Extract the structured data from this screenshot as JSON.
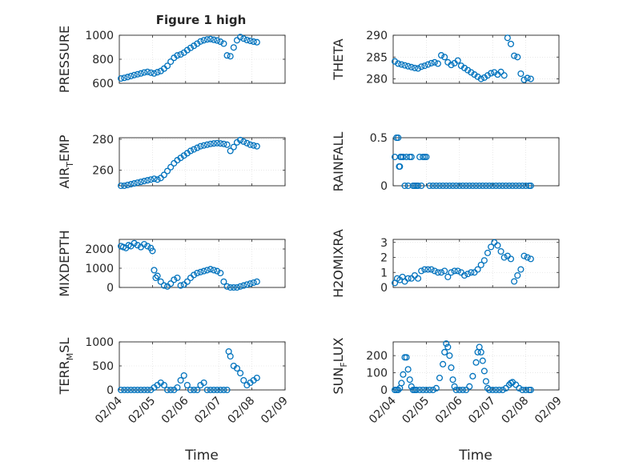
{
  "colors": {
    "marker": "#0072BD",
    "axis": "#262626",
    "grid": "#d9d9d9"
  },
  "figure_title": "Figure 1 high",
  "xlabel": "Time",
  "x_ticks": [
    "02/04",
    "02/05",
    "02/06",
    "02/07",
    "02/08",
    "02/09"
  ],
  "chart_data": [
    {
      "type": "scatter",
      "ylabel": "PRESSURE",
      "ylim": [
        600,
        1000
      ],
      "yticks": [
        600,
        800,
        1000
      ],
      "grid": true,
      "x": [
        0.05,
        0.15,
        0.25,
        0.35,
        0.45,
        0.55,
        0.65,
        0.75,
        0.85,
        0.95,
        1.05,
        1.15,
        1.25,
        1.35,
        1.45,
        1.55,
        1.65,
        1.75,
        1.85,
        1.95,
        2.05,
        2.15,
        2.25,
        2.35,
        2.45,
        2.55,
        2.65,
        2.75,
        2.85,
        2.95,
        3.05,
        3.15,
        3.25,
        3.35,
        3.45,
        3.55,
        3.65,
        3.75,
        3.85,
        3.95,
        4.05,
        4.15
      ],
      "y": [
        640,
        645,
        652,
        660,
        668,
        675,
        682,
        690,
        695,
        688,
        682,
        692,
        702,
        722,
        745,
        780,
        812,
        832,
        840,
        855,
        876,
        895,
        912,
        930,
        948,
        958,
        965,
        968,
        962,
        956,
        946,
        930,
        832,
        825,
        898,
        958,
        985,
        972,
        960,
        953,
        947,
        942
      ]
    },
    {
      "type": "scatter",
      "ylabel": "THETA",
      "ylim": [
        279,
        290
      ],
      "yticks": [
        280,
        285,
        290
      ],
      "grid": true,
      "x": [
        0.05,
        0.15,
        0.25,
        0.35,
        0.45,
        0.55,
        0.65,
        0.75,
        0.85,
        0.95,
        1.05,
        1.15,
        1.25,
        1.35,
        1.45,
        1.55,
        1.65,
        1.75,
        1.85,
        1.95,
        2.05,
        2.15,
        2.25,
        2.35,
        2.45,
        2.55,
        2.65,
        2.75,
        2.85,
        2.95,
        3.05,
        3.15,
        3.25,
        3.35,
        3.45,
        3.55,
        3.65,
        3.75,
        3.85,
        3.95,
        4.05,
        4.15
      ],
      "y": [
        284.0,
        283.5,
        283.3,
        283.1,
        282.9,
        282.7,
        282.5,
        282.4,
        282.8,
        283.0,
        283.3,
        283.6,
        283.8,
        283.5,
        285.4,
        285.0,
        283.8,
        283.2,
        283.6,
        284.2,
        283.0,
        282.5,
        282.0,
        281.5,
        281.0,
        280.5,
        280.0,
        280.3,
        280.8,
        281.3,
        281.5,
        281.0,
        281.6,
        280.8,
        289.4,
        288.0,
        285.3,
        285.0,
        281.2,
        279.8,
        280.2,
        280.0
      ]
    },
    {
      "type": "scatter",
      "ylabel": "AIR_TEMP",
      "ylim": [
        250,
        281
      ],
      "yticks": [
        260,
        280
      ],
      "grid": true,
      "x": [
        0.05,
        0.15,
        0.25,
        0.35,
        0.45,
        0.55,
        0.65,
        0.75,
        0.85,
        0.95,
        1.05,
        1.15,
        1.25,
        1.35,
        1.45,
        1.55,
        1.65,
        1.75,
        1.85,
        1.95,
        2.05,
        2.15,
        2.25,
        2.35,
        2.45,
        2.55,
        2.65,
        2.75,
        2.85,
        2.95,
        3.05,
        3.15,
        3.25,
        3.35,
        3.45,
        3.55,
        3.65,
        3.75,
        3.85,
        3.95,
        4.05,
        4.15
      ],
      "y": [
        250,
        250,
        250.5,
        251,
        251.5,
        252,
        252.5,
        253,
        253.5,
        254,
        254.5,
        254,
        255,
        257,
        259.5,
        262,
        264.5,
        266.5,
        268,
        269.5,
        271,
        272.5,
        273.5,
        274.5,
        275.5,
        276,
        276.5,
        277,
        277.3,
        277.5,
        277.3,
        277,
        276.5,
        272.5,
        275,
        278,
        279.5,
        278.5,
        277.5,
        276.5,
        276,
        275.5
      ]
    },
    {
      "type": "scatter",
      "ylabel": "RAINFALL",
      "ylim": [
        0,
        0.5
      ],
      "yticks": [
        0,
        0.5
      ],
      "grid": true,
      "x": [
        0.05,
        0.1,
        0.15,
        0.18,
        0.2,
        0.22,
        0.25,
        0.3,
        0.35,
        0.4,
        0.45,
        0.5,
        0.55,
        0.6,
        0.65,
        0.7,
        0.75,
        0.8,
        0.85,
        0.9,
        0.95,
        1.0,
        1.1,
        1.2,
        1.3,
        1.4,
        1.5,
        1.6,
        1.7,
        1.8,
        1.9,
        2.0,
        2.1,
        2.2,
        2.3,
        2.4,
        2.5,
        2.6,
        2.7,
        2.8,
        2.9,
        3.0,
        3.1,
        3.2,
        3.3,
        3.4,
        3.5,
        3.6,
        3.7,
        3.8,
        3.9,
        4.0,
        4.1,
        4.15
      ],
      "y": [
        0.3,
        0.5,
        0.5,
        0.2,
        0.2,
        0.3,
        0.3,
        0.3,
        0,
        0.3,
        0,
        0.3,
        0.3,
        0,
        0,
        0,
        0,
        0.3,
        0,
        0.3,
        0.3,
        0.3,
        0,
        0,
        0,
        0,
        0,
        0,
        0,
        0,
        0,
        0,
        0,
        0,
        0,
        0,
        0,
        0,
        0,
        0,
        0,
        0,
        0,
        0,
        0,
        0,
        0,
        0,
        0,
        0,
        0,
        0,
        0,
        0
      ]
    },
    {
      "type": "scatter",
      "ylabel": "MIXDEPTH",
      "ylim": [
        0,
        2500
      ],
      "yticks": [
        0,
        1000,
        2000
      ],
      "grid": true,
      "x": [
        0.05,
        0.12,
        0.2,
        0.28,
        0.35,
        0.45,
        0.55,
        0.65,
        0.75,
        0.85,
        0.95,
        1.0,
        1.05,
        1.1,
        1.15,
        1.25,
        1.35,
        1.45,
        1.55,
        1.65,
        1.75,
        1.85,
        1.95,
        2.05,
        2.15,
        2.25,
        2.35,
        2.45,
        2.55,
        2.65,
        2.75,
        2.85,
        2.95,
        3.05,
        3.15,
        3.25,
        3.35,
        3.45,
        3.55,
        3.65,
        3.75,
        3.85,
        3.95,
        4.05,
        4.15
      ],
      "y": [
        2150,
        2100,
        2050,
        2200,
        2150,
        2300,
        2200,
        2100,
        2250,
        2150,
        2050,
        1900,
        900,
        500,
        600,
        300,
        100,
        50,
        200,
        400,
        500,
        100,
        150,
        300,
        500,
        650,
        750,
        800,
        850,
        900,
        950,
        900,
        850,
        750,
        300,
        50,
        0,
        0,
        0,
        50,
        100,
        150,
        200,
        250,
        300
      ]
    },
    {
      "type": "scatter",
      "ylabel": "H2OMIXRA",
      "ylim": [
        0,
        3.2
      ],
      "yticks": [
        0,
        1,
        2,
        3
      ],
      "grid": true,
      "x": [
        0.05,
        0.12,
        0.2,
        0.28,
        0.35,
        0.45,
        0.55,
        0.65,
        0.75,
        0.85,
        0.95,
        1.05,
        1.15,
        1.25,
        1.35,
        1.45,
        1.55,
        1.65,
        1.75,
        1.85,
        1.95,
        2.05,
        2.15,
        2.25,
        2.35,
        2.45,
        2.55,
        2.65,
        2.75,
        2.85,
        2.95,
        3.05,
        3.15,
        3.25,
        3.35,
        3.45,
        3.55,
        3.65,
        3.75,
        3.85,
        3.95,
        4.05,
        4.15
      ],
      "y": [
        0.3,
        0.6,
        0.5,
        0.7,
        0.4,
        0.6,
        0.6,
        0.8,
        0.6,
        1.1,
        1.2,
        1.2,
        1.2,
        1.1,
        1.0,
        1.0,
        1.1,
        0.7,
        1.0,
        1.1,
        1.1,
        1.0,
        0.8,
        0.9,
        1.0,
        1.0,
        1.2,
        1.5,
        1.8,
        2.3,
        2.7,
        3.0,
        2.8,
        2.4,
        2.0,
        2.1,
        1.9,
        0.4,
        0.8,
        1.2,
        2.1,
        2.0,
        1.9
      ]
    },
    {
      "type": "scatter",
      "ylabel": "TERR_MSL",
      "ylim": [
        0,
        1000
      ],
      "yticks": [
        0,
        500,
        1000
      ],
      "grid": true,
      "x": [
        0.05,
        0.15,
        0.25,
        0.35,
        0.45,
        0.55,
        0.65,
        0.75,
        0.85,
        0.95,
        1.05,
        1.15,
        1.25,
        1.35,
        1.45,
        1.55,
        1.65,
        1.75,
        1.85,
        1.95,
        2.05,
        2.15,
        2.25,
        2.35,
        2.45,
        2.55,
        2.65,
        2.75,
        2.85,
        2.95,
        3.05,
        3.15,
        3.25,
        3.3,
        3.35,
        3.45,
        3.55,
        3.65,
        3.75,
        3.85,
        3.95,
        4.05,
        4.15
      ],
      "y": [
        0,
        0,
        0,
        0,
        0,
        0,
        0,
        0,
        0,
        0,
        50,
        100,
        150,
        100,
        0,
        0,
        0,
        50,
        200,
        300,
        100,
        0,
        0,
        0,
        100,
        150,
        0,
        0,
        0,
        0,
        0,
        0,
        0,
        800,
        700,
        500,
        450,
        350,
        200,
        100,
        150,
        200,
        250
      ]
    },
    {
      "type": "scatter",
      "ylabel": "SUN_FLUX",
      "ylim": [
        0,
        280
      ],
      "yticks": [
        0,
        100,
        200
      ],
      "grid": true,
      "x": [
        0.05,
        0.1,
        0.15,
        0.2,
        0.25,
        0.3,
        0.35,
        0.4,
        0.45,
        0.5,
        0.55,
        0.6,
        0.65,
        0.7,
        0.8,
        0.9,
        1.0,
        1.1,
        1.2,
        1.3,
        1.4,
        1.5,
        1.55,
        1.6,
        1.65,
        1.7,
        1.75,
        1.8,
        1.85,
        1.9,
        2.0,
        2.1,
        2.2,
        2.3,
        2.4,
        2.5,
        2.55,
        2.6,
        2.65,
        2.7,
        2.75,
        2.8,
        2.85,
        2.9,
        3.0,
        3.1,
        3.2,
        3.3,
        3.4,
        3.5,
        3.55,
        3.6,
        3.7,
        3.8,
        3.9,
        4.0,
        4.1,
        4.15
      ],
      "y": [
        0,
        0,
        0,
        10,
        40,
        90,
        190,
        190,
        120,
        60,
        20,
        0,
        0,
        0,
        0,
        0,
        0,
        0,
        0,
        10,
        70,
        150,
        220,
        270,
        250,
        200,
        130,
        60,
        20,
        0,
        0,
        0,
        0,
        20,
        80,
        160,
        220,
        250,
        220,
        170,
        110,
        50,
        10,
        0,
        0,
        0,
        0,
        0,
        10,
        30,
        40,
        45,
        30,
        10,
        0,
        0,
        0,
        0
      ]
    }
  ]
}
